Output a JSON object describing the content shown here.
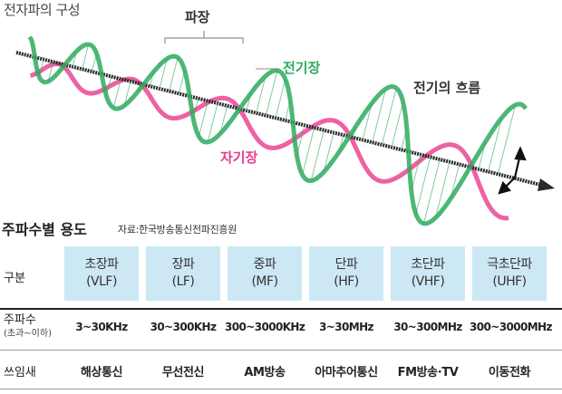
{
  "diagram": {
    "title": "전자파의 구성",
    "wavelength_label": "파장",
    "electric_field_label": "전기장",
    "current_label": "전기의 흐름",
    "magnetic_field_label": "자기장",
    "colors": {
      "electric": "#2eaa5e",
      "magnetic": "#ea3a8c",
      "axis": "#2a2a2a"
    }
  },
  "table": {
    "title": "주파수별 용도",
    "source": "자료:한국방송통신전파진흥원",
    "row_labels": {
      "band": "구분",
      "frequency": "주파수",
      "frequency_note": "(초과~이하)",
      "usage": "쓰임새"
    },
    "columns": [
      {
        "name": "초장파",
        "code": "(VLF)",
        "frequency": "3~30KHz",
        "usage": "해상통신"
      },
      {
        "name": "장파",
        "code": "(LF)",
        "frequency": "30~300KHz",
        "usage": "무선전신"
      },
      {
        "name": "중파",
        "code": "(MF)",
        "frequency": "300~3000KHz",
        "usage": "AM방송"
      },
      {
        "name": "단파",
        "code": "(HF)",
        "frequency": "3~30MHz",
        "usage": "아마추어통신"
      },
      {
        "name": "초단파",
        "code": "(VHF)",
        "frequency": "30~300MHz",
        "usage": "FM방송·TV"
      },
      {
        "name": "극초단파",
        "code": "(UHF)",
        "frequency": "300~3000MHz",
        "usage": "이동전화"
      }
    ],
    "colors": {
      "header_fill": "#cde8f5"
    }
  }
}
